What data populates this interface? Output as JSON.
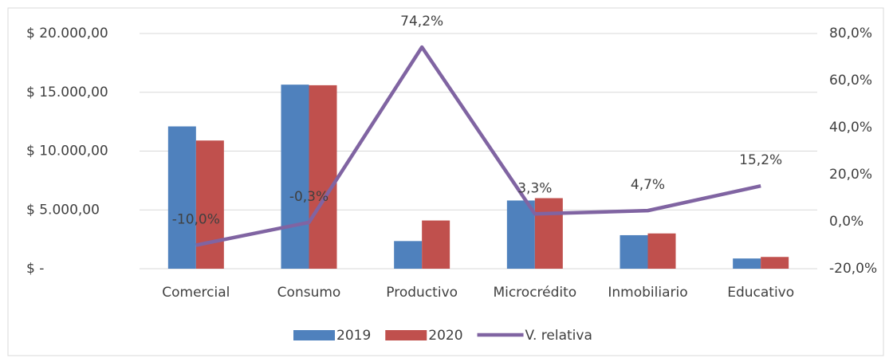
{
  "chart_data": {
    "type": "bar_line",
    "categories": [
      "Comercial",
      "Consumo",
      "Productivo",
      "Microcrédito",
      "Inmobiliario",
      "Educativo"
    ],
    "series": [
      {
        "name": "2019",
        "color": "#4f81bd",
        "values": [
          12100,
          15650,
          2350,
          5800,
          2850,
          870
        ]
      },
      {
        "name": "2020",
        "color": "#c0504d",
        "values": [
          10900,
          15600,
          4100,
          6000,
          3000,
          1000
        ]
      },
      {
        "name": "V. relativa",
        "color": "#8064a2",
        "axis": "y2",
        "values": [
          -10.0,
          -0.3,
          74.2,
          3.3,
          4.7,
          15.2
        ],
        "value_labels": [
          "-10,0%",
          "-0,3%",
          "74,2%",
          "3,3%",
          "4,7%",
          "15,2%"
        ]
      }
    ],
    "ylim": [
      0,
      20000
    ],
    "yticks": [
      {
        "value": 0,
        "label": "$ -"
      },
      {
        "value": 5000,
        "label": "$ 5.000,00"
      },
      {
        "value": 10000,
        "label": "$ 10.000,00"
      },
      {
        "value": 15000,
        "label": "$ 15.000,00"
      },
      {
        "value": 20000,
        "label": "$ 20.000,00"
      }
    ],
    "y2lim": [
      -20,
      80
    ],
    "y2ticks": [
      {
        "value": -20,
        "label": "-20,0%"
      },
      {
        "value": 0,
        "label": "0,0%"
      },
      {
        "value": 20,
        "label": "20,0%"
      },
      {
        "value": 40,
        "label": "40,0%"
      },
      {
        "value": 60,
        "label": "60,0%"
      },
      {
        "value": 80,
        "label": "80,0%"
      }
    ],
    "grid": true,
    "legend": "bottom"
  }
}
